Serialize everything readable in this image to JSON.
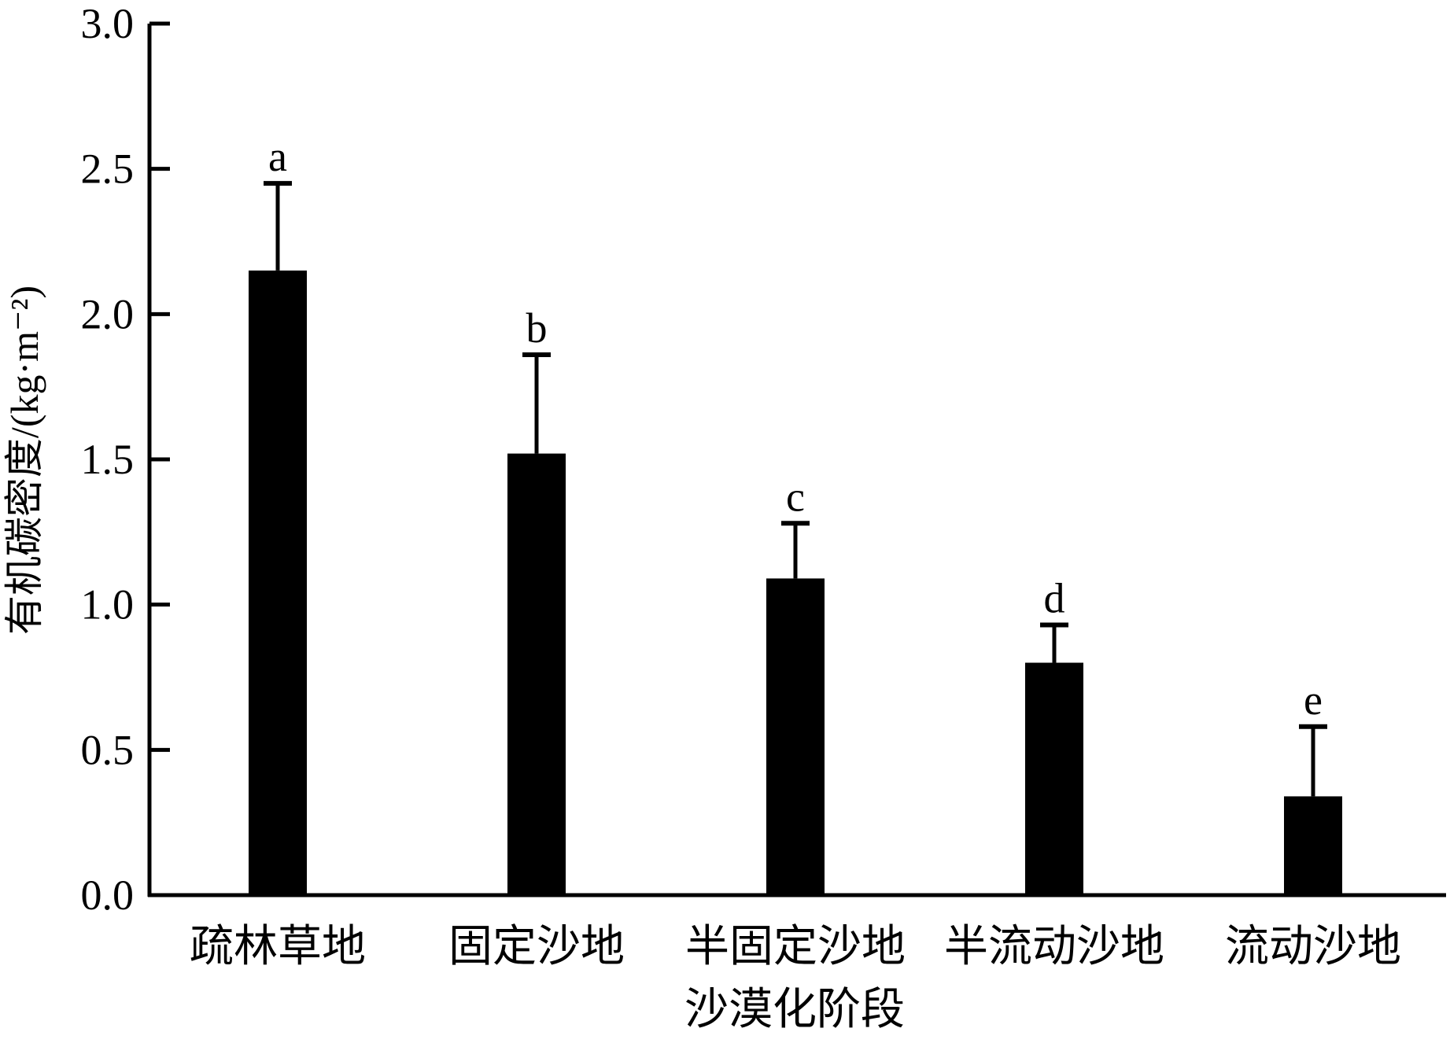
{
  "chart_data": {
    "type": "bar",
    "xlabel": "沙漠化阶段",
    "ylabel": "有机碳密度/(kg·m⁻²)",
    "categories": [
      "疏林草地",
      "固定沙地",
      "半固定沙地",
      "半流动沙地",
      "流动沙地"
    ],
    "values": [
      2.15,
      1.52,
      1.09,
      0.8,
      0.34
    ],
    "errors": [
      0.3,
      0.34,
      0.19,
      0.13,
      0.24
    ],
    "significance_labels": [
      "a",
      "b",
      "c",
      "d",
      "e"
    ],
    "ylim": [
      0,
      3.0
    ],
    "yticks": [
      0.0,
      0.5,
      1.0,
      1.5,
      2.0,
      2.5,
      3.0
    ],
    "ytick_labels": [
      "0.0",
      "0.5",
      "1.0",
      "1.5",
      "2.0",
      "2.5",
      "3.0"
    ],
    "grid": false,
    "legend": "none",
    "colors": {
      "bar": "#000000",
      "axis": "#000000",
      "background": "#ffffff"
    }
  }
}
